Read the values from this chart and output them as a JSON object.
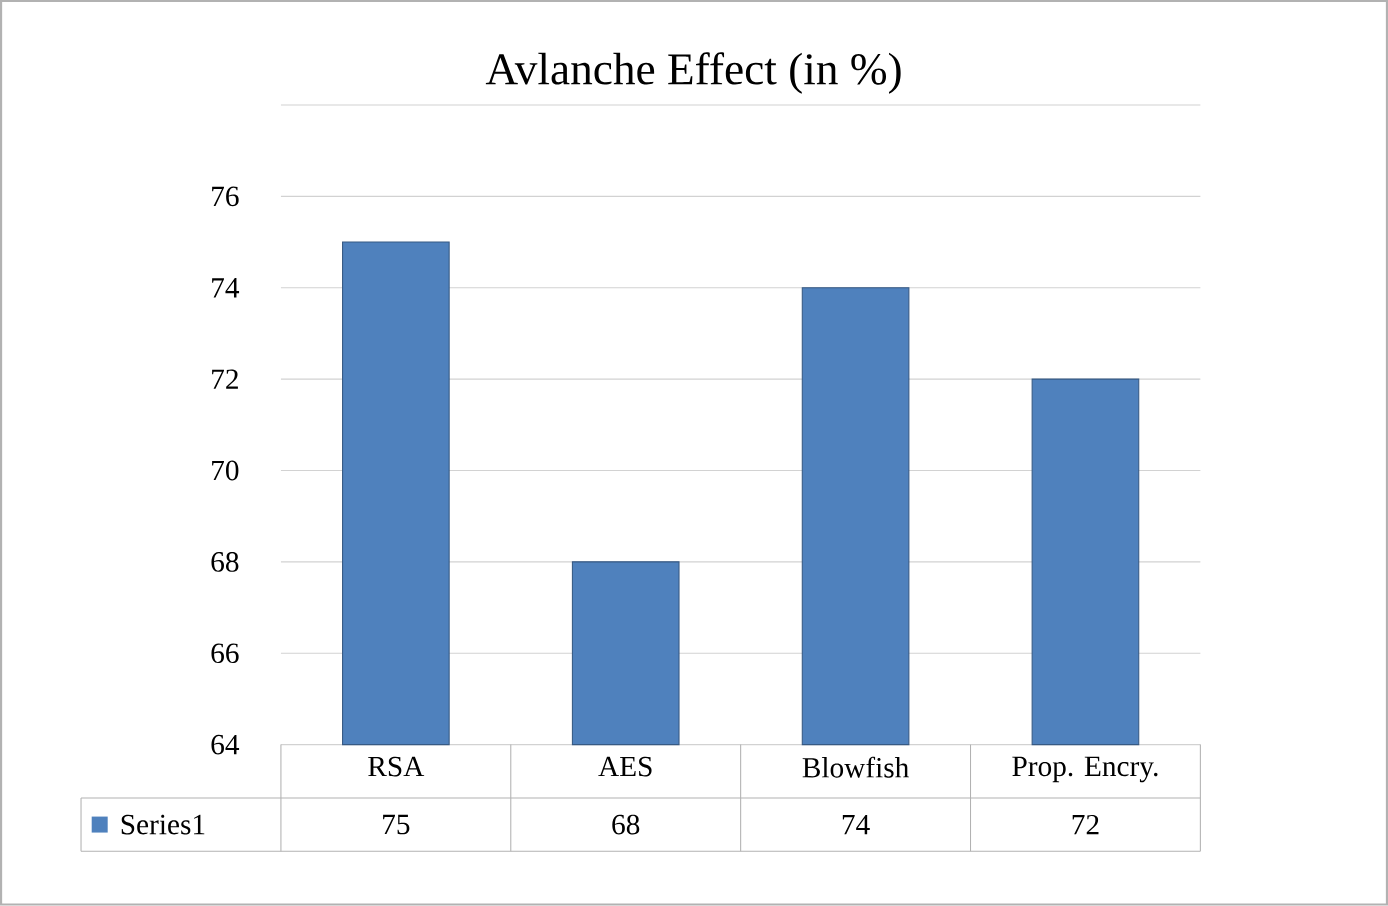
{
  "chart_data": {
    "type": "bar",
    "title": "Avlanche Effect (in %)",
    "categories": [
      "RSA",
      "AES",
      "Blowfish",
      "Prop. Encry."
    ],
    "series": [
      {
        "name": "Series1",
        "color": "#4f81bd",
        "values": [
          75,
          68,
          74,
          72
        ]
      }
    ],
    "ylim": [
      64,
      78
    ],
    "yticks": [
      64,
      66,
      68,
      70,
      72,
      74,
      76,
      {
        "value": 78,
        "label": null
      }
    ],
    "grid": "y",
    "data_labels": true
  }
}
